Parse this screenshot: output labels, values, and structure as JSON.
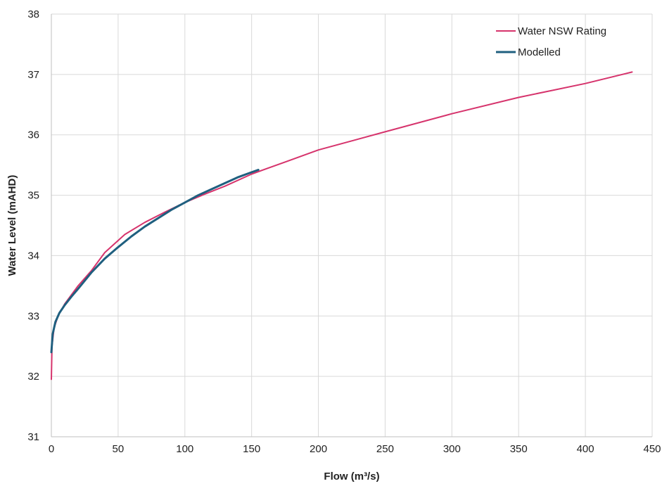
{
  "chart_data": {
    "type": "line",
    "title": "",
    "xlabel": "Flow (m³/s)",
    "ylabel": "Water Level (mAHD)",
    "xlim": [
      0,
      450
    ],
    "ylim": [
      31,
      38
    ],
    "x_ticks": [
      "0",
      "50",
      "100",
      "150",
      "200",
      "250",
      "300",
      "350",
      "400",
      "450"
    ],
    "y_ticks": [
      "31",
      "32",
      "33",
      "34",
      "35",
      "36",
      "37",
      "38"
    ],
    "grid": true,
    "legend_position": "top-right",
    "series": [
      {
        "name": "Water NSW Rating",
        "color": "#d6336c",
        "x": [
          0,
          0.5,
          2,
          5,
          10,
          15,
          20,
          30,
          40,
          55,
          70,
          85,
          100,
          115,
          130,
          150,
          175,
          200,
          250,
          300,
          350,
          400,
          435
        ],
        "y": [
          31.95,
          32.5,
          32.8,
          33.0,
          33.2,
          33.35,
          33.5,
          33.75,
          34.05,
          34.35,
          34.55,
          34.72,
          34.88,
          35.02,
          35.15,
          35.35,
          35.55,
          35.75,
          36.05,
          36.35,
          36.62,
          36.85,
          37.04
        ]
      },
      {
        "name": "Modelled",
        "color": "#1f5f7f",
        "x": [
          0,
          1,
          3,
          6,
          10,
          15,
          20,
          30,
          40,
          50,
          60,
          70,
          80,
          90,
          100,
          110,
          120,
          130,
          140,
          150,
          155
        ],
        "y": [
          32.4,
          32.7,
          32.9,
          33.05,
          33.18,
          33.32,
          33.45,
          33.72,
          33.95,
          34.14,
          34.32,
          34.48,
          34.62,
          34.76,
          34.88,
          35.0,
          35.1,
          35.2,
          35.3,
          35.38,
          35.42
        ]
      }
    ]
  }
}
